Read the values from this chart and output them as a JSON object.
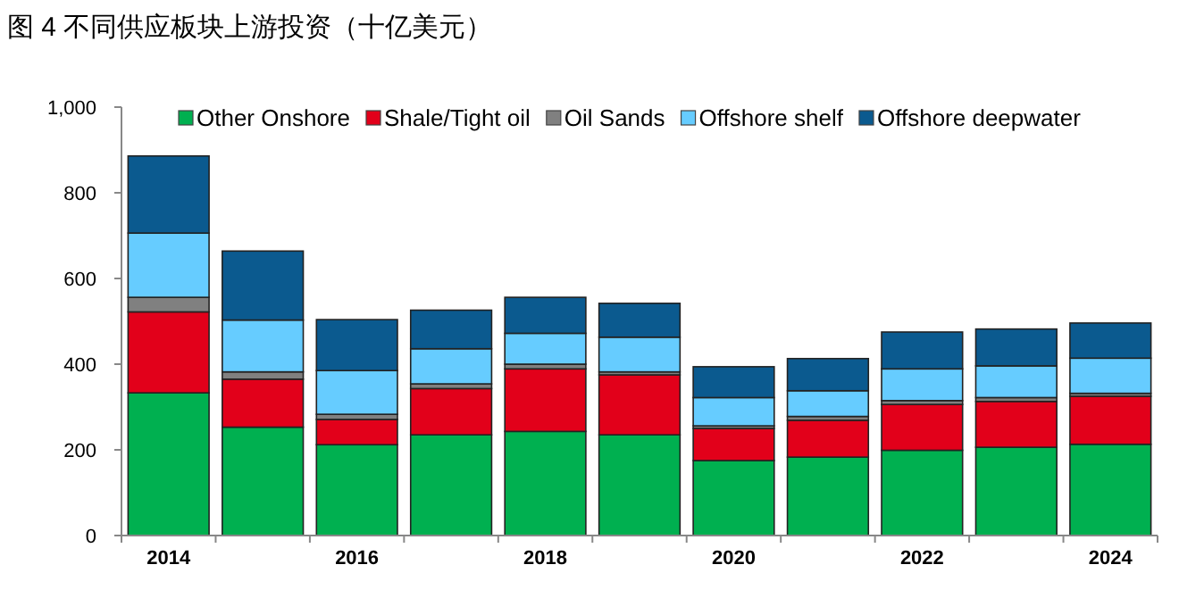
{
  "chart_data": {
    "type": "bar",
    "title": "图 4 不同供应板块上游投资（十亿美元）",
    "stacked": true,
    "legend": "top",
    "grid": false,
    "categories": [
      "2014",
      null,
      "2016",
      null,
      "2018",
      null,
      "2020",
      null,
      "2022",
      null,
      "2024"
    ],
    "ylim": [
      0,
      1000
    ],
    "yticks": [
      0,
      200,
      400,
      600,
      800,
      {
        "value": 1000,
        "label": "1,000"
      }
    ],
    "series": [
      {
        "name": "Other Onshore",
        "color": "#00b050",
        "values": [
          333,
          253,
          212,
          235,
          243,
          235,
          175,
          183,
          199,
          206,
          213
        ]
      },
      {
        "name": "Shale/Tight oil",
        "color": "#e2001a",
        "values": [
          189,
          112,
          59,
          108,
          146,
          140,
          75,
          86,
          107,
          107,
          112
        ]
      },
      {
        "name": "Oil Sands",
        "color": "#808080",
        "values": [
          34,
          17,
          12,
          11,
          11,
          7,
          6,
          9,
          9,
          9,
          7
        ]
      },
      {
        "name": "Offshore shelf",
        "color": "#66ccff",
        "values": [
          150,
          121,
          102,
          82,
          72,
          81,
          66,
          60,
          74,
          74,
          82
        ]
      },
      {
        "name": "Offshore deepwater",
        "color": "#0b5a8f",
        "values": [
          180,
          161,
          119,
          90,
          84,
          79,
          72,
          75,
          86,
          86,
          82
        ]
      }
    ]
  }
}
